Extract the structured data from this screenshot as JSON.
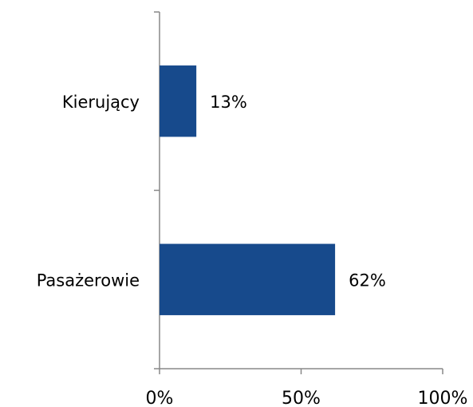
{
  "chart_data": {
    "type": "bar",
    "orientation": "horizontal",
    "categories": [
      "Kierujący",
      "Pasażerowie"
    ],
    "values": [
      13,
      62
    ],
    "value_labels": [
      "13%",
      "62%"
    ],
    "color": "#174a8c",
    "xlim": [
      0,
      100
    ],
    "xticks": [
      {
        "value": 0,
        "label": "0%"
      },
      {
        "value": 50,
        "label": "50%"
      },
      {
        "value": 100,
        "label": "100%"
      }
    ]
  }
}
